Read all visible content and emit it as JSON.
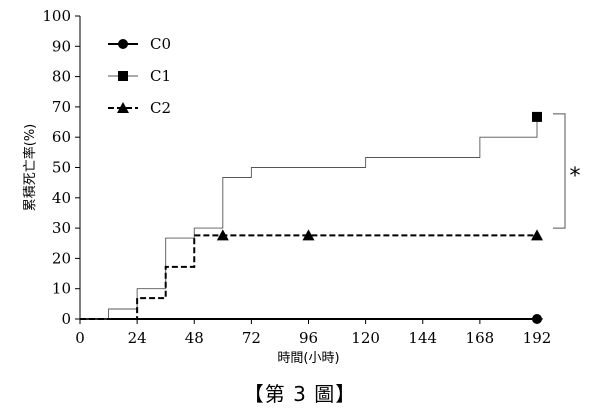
{
  "caption": "【第 3 圖】",
  "chart_data": {
    "type": "line",
    "step": true,
    "xlabel": "時間(小時)",
    "ylabel": "累積死亡率(%)",
    "xlim": [
      0,
      192
    ],
    "ylim": [
      0,
      100
    ],
    "xticks": [
      0,
      24,
      48,
      72,
      96,
      120,
      144,
      168,
      192
    ],
    "yticks": [
      0,
      10,
      20,
      30,
      40,
      50,
      60,
      70,
      80,
      90,
      100
    ],
    "legend_position": "top-left",
    "grid": false,
    "series": [
      {
        "name": "C0",
        "marker": "circle",
        "line_style": "solid-thick",
        "color": "#000000",
        "steps": [
          [
            0,
            0
          ],
          [
            192,
            0
          ]
        ],
        "markers": [
          [
            192,
            0
          ]
        ]
      },
      {
        "name": "C1",
        "marker": "square",
        "line_style": "solid-thin",
        "color": "#555555",
        "steps": [
          [
            0,
            0
          ],
          [
            12,
            3.3
          ],
          [
            24,
            10
          ],
          [
            36,
            26.7
          ],
          [
            48,
            30
          ],
          [
            60,
            46.7
          ],
          [
            72,
            50
          ],
          [
            120,
            53.3
          ],
          [
            168,
            60
          ],
          [
            192,
            66.7
          ]
        ],
        "markers": [
          [
            192,
            66.7
          ]
        ]
      },
      {
        "name": "C2",
        "marker": "triangle",
        "line_style": "dashed",
        "color": "#000000",
        "steps": [
          [
            0,
            0
          ],
          [
            24,
            6.9
          ],
          [
            36,
            17.2
          ],
          [
            48,
            27.6
          ],
          [
            192,
            27.6
          ]
        ],
        "markers": [
          [
            60,
            27.6
          ],
          [
            96,
            27.6
          ],
          [
            192,
            27.6
          ]
        ]
      }
    ],
    "annotations": [
      {
        "type": "bracket",
        "label": "*",
        "from_y": 66.7,
        "to_y": 30,
        "x": 192
      }
    ]
  }
}
